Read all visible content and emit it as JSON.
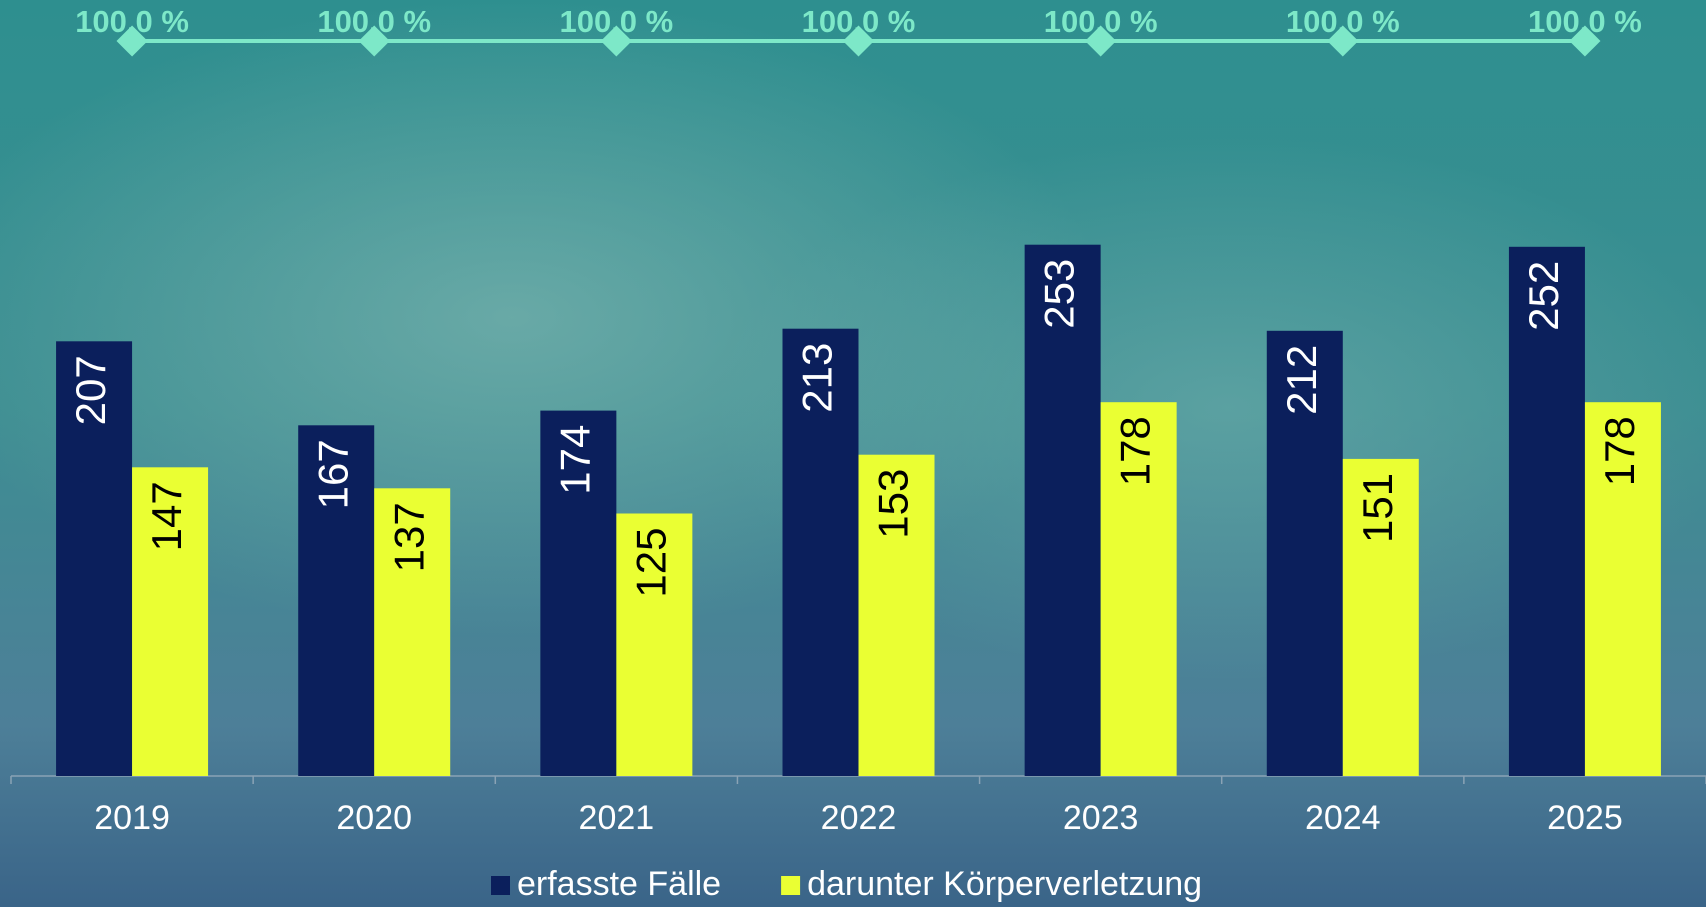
{
  "chart_data": {
    "type": "bar",
    "categories": [
      "2019",
      "2020",
      "2021",
      "2022",
      "2023",
      "2024",
      "2025"
    ],
    "series": [
      {
        "name": "erfasste Fälle",
        "color": "#0b1f5c",
        "label_color": "#ffffff",
        "values": [
          207,
          167,
          174,
          213,
          253,
          212,
          252
        ]
      },
      {
        "name": "darunter Körperverletzung",
        "color": "#eaff33",
        "label_color": "#000000",
        "values": [
          147,
          137,
          125,
          153,
          178,
          151,
          178
        ]
      },
      {
        "type": "line",
        "axis": "y2",
        "color": "#7de8c8",
        "values": [
          100,
          100,
          100,
          100,
          100,
          100,
          100
        ],
        "value_labels": [
          "100,0 %",
          "100,0 %",
          "100,0 %",
          "100,0 %",
          "100,0 %",
          "100,0 %",
          "100,0 %"
        ]
      }
    ],
    "ylim": [
      0,
      350
    ],
    "y2lim": [
      0,
      100
    ],
    "grid": false,
    "legend": "bottom"
  }
}
